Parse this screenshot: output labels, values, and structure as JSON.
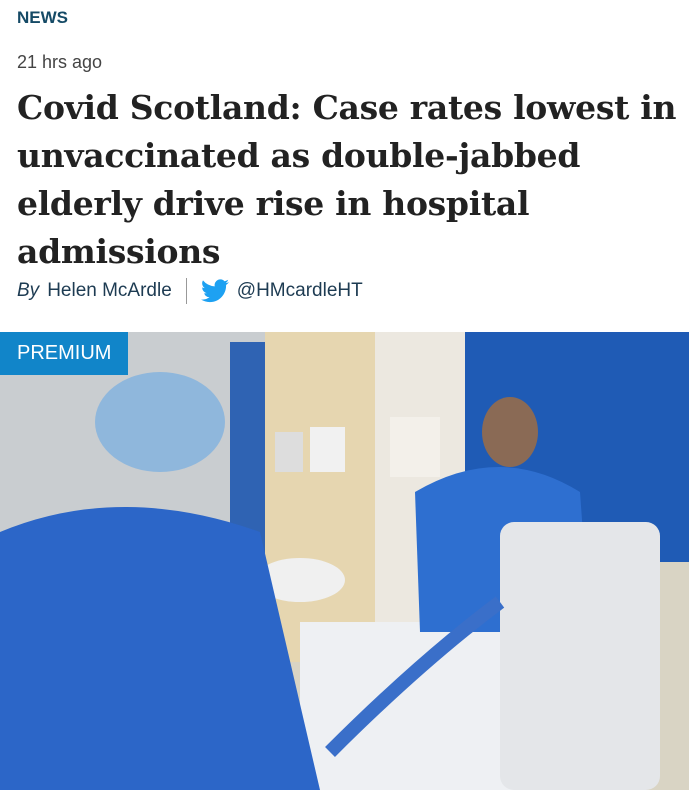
{
  "article": {
    "section": "NEWS",
    "time": "21 hrs ago",
    "headline": "Covid Scotland: Case rates lowest in unvaccinated as double-jabbed elderly drive rise in hospital admissions",
    "byline": {
      "by": "By",
      "author": "Helen McArdle",
      "twitter_icon": "twitter-bird-icon",
      "twitter_handle": "@HMcardleHT"
    },
    "image": {
      "badge": "PREMIUM"
    }
  },
  "colors": {
    "section": "#154a66",
    "badge": "#1185c9",
    "twitter": "#1da1f2"
  }
}
